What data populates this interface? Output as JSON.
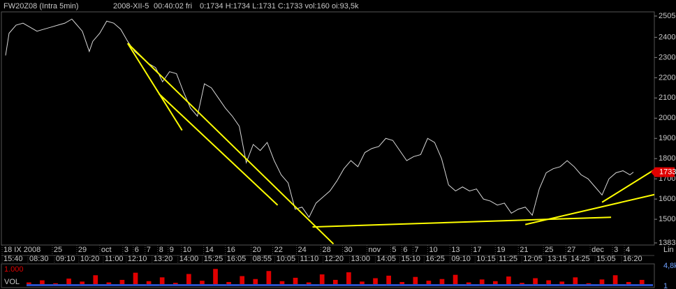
{
  "header": {
    "symbol": "FW20Z08 (Intra 5min)",
    "date": "2008-XII-5",
    "time": "00:40:02 fri",
    "quote": "0:1734 H:1734 L:1731 C:1733 vol:160 oi:93,5k"
  },
  "chart_data": {
    "type": "line",
    "x": [
      5,
      10,
      20,
      30,
      40,
      50,
      60,
      70,
      80,
      90,
      100,
      105,
      115,
      125,
      130,
      140,
      150,
      160,
      170,
      180,
      190,
      200,
      210,
      220,
      230,
      240,
      250,
      260,
      270,
      280,
      290,
      300,
      310,
      320,
      330,
      340,
      350,
      360,
      370,
      380,
      390,
      400,
      410,
      420,
      430,
      440,
      450,
      460,
      470,
      480,
      490,
      500,
      510,
      520,
      530,
      540,
      550,
      560,
      570,
      580,
      590,
      600,
      610,
      620,
      630,
      640,
      650,
      660,
      670,
      680,
      690,
      700,
      710,
      720,
      730,
      740,
      750,
      760,
      770,
      780,
      790,
      800,
      810,
      820,
      830,
      840,
      850,
      860,
      870,
      880,
      890,
      900,
      905
    ],
    "series": [
      {
        "name": "FW20Z08",
        "color": "#d8d8d8",
        "values": [
          2310,
          2420,
          2460,
          2470,
          2450,
          2430,
          2440,
          2450,
          2460,
          2470,
          2490,
          2470,
          2430,
          2330,
          2380,
          2420,
          2480,
          2470,
          2440,
          2380,
          2330,
          2300,
          2270,
          2250,
          2180,
          2230,
          2220,
          2130,
          2050,
          2010,
          2170,
          2150,
          2100,
          2050,
          2010,
          1960,
          1780,
          1870,
          1840,
          1880,
          1790,
          1720,
          1680,
          1550,
          1560,
          1510,
          1580,
          1610,
          1640,
          1690,
          1750,
          1790,
          1760,
          1830,
          1850,
          1860,
          1900,
          1890,
          1840,
          1790,
          1810,
          1820,
          1900,
          1880,
          1800,
          1670,
          1640,
          1660,
          1640,
          1650,
          1600,
          1590,
          1570,
          1580,
          1530,
          1550,
          1560,
          1520,
          1650,
          1730,
          1750,
          1760,
          1790,
          1760,
          1720,
          1700,
          1660,
          1620,
          1700,
          1730,
          1740,
          1720,
          1733
        ]
      }
    ],
    "xlim": [
      0,
      935
    ],
    "ylim": [
      1383,
      2505
    ],
    "yticks": [
      1383,
      1500,
      1600,
      1700,
      1800,
      1900,
      2000,
      2100,
      2200,
      2300,
      2400,
      2505
    ],
    "scale_label": "Lin",
    "last": 1733,
    "last_color": "#e00000",
    "trendline_color": "#ffff00",
    "trendlines": [
      {
        "x": [
          180,
          258
        ],
        "y": [
          2370,
          1940
        ]
      },
      {
        "x": [
          225,
          395
        ],
        "y": [
          2120,
          1570
        ]
      },
      {
        "x": [
          180,
          475
        ],
        "y": [
          2370,
          1378
        ]
      },
      {
        "x": [
          445,
          873
        ],
        "y": [
          1462,
          1510
        ]
      },
      {
        "x": [
          750,
          935
        ],
        "y": [
          1474,
          1622
        ]
      },
      {
        "x": [
          860,
          935
        ],
        "y": [
          1584,
          1745
        ]
      }
    ],
    "date_ticks": [
      {
        "value": 0,
        "label": "18 IX 2008"
      },
      {
        "value": 72,
        "label": "25"
      },
      {
        "value": 107,
        "label": "29"
      },
      {
        "value": 140,
        "label": "oct"
      },
      {
        "value": 173,
        "label": "3"
      },
      {
        "value": 188,
        "label": "6"
      },
      {
        "value": 205,
        "label": "7"
      },
      {
        "value": 223,
        "label": "8"
      },
      {
        "value": 238,
        "label": "9"
      },
      {
        "value": 257,
        "label": "10"
      },
      {
        "value": 289,
        "label": "14"
      },
      {
        "value": 320,
        "label": "16"
      },
      {
        "value": 357,
        "label": "20"
      },
      {
        "value": 388,
        "label": "22"
      },
      {
        "value": 422,
        "label": "24"
      },
      {
        "value": 457,
        "label": "28"
      },
      {
        "value": 488,
        "label": "30"
      },
      {
        "value": 523,
        "label": "nov"
      },
      {
        "value": 557,
        "label": "5"
      },
      {
        "value": 573,
        "label": "6"
      },
      {
        "value": 589,
        "label": "7"
      },
      {
        "value": 610,
        "label": "10"
      },
      {
        "value": 642,
        "label": "13"
      },
      {
        "value": 673,
        "label": "17"
      },
      {
        "value": 707,
        "label": "19"
      },
      {
        "value": 740,
        "label": "21"
      },
      {
        "value": 776,
        "label": "25"
      },
      {
        "value": 808,
        "label": "27"
      },
      {
        "value": 843,
        "label": "dec"
      },
      {
        "value": 875,
        "label": "3"
      },
      {
        "value": 892,
        "label": "4"
      }
    ],
    "time_ticks": [
      "15:40",
      "08:30",
      "09:10",
      "10:20",
      "11:00",
      "12:10",
      "13:20",
      "14:00",
      "15:25",
      "16:05",
      "08:55",
      "10:05",
      "11:10",
      "12:20",
      "13:00",
      "14:05",
      "15:10",
      "16:25",
      "09:10",
      "10:15",
      "11:25",
      "12:05",
      "13:15",
      "14:25",
      "15:05",
      "16:20"
    ],
    "time_tick_x": [
      0,
      37,
      75,
      110,
      145,
      178,
      215,
      252,
      287,
      320,
      357,
      391,
      425,
      460,
      498,
      535,
      570,
      605,
      642,
      678,
      710,
      745,
      780,
      813,
      850,
      888
    ],
    "volume": {
      "name": "VOL",
      "scale": "1.000",
      "color": "#e00000",
      "ylim": [
        1,
        4800
      ],
      "yticks": [
        {
          "value": 4800,
          "label": "4,8k"
        },
        1
      ],
      "values": [
        900,
        1400,
        700,
        1800,
        1100,
        2600,
        900,
        1500,
        3200,
        1200,
        2100,
        800,
        2900,
        1300,
        4100,
        1000,
        2400,
        1700,
        3600,
        1200,
        2000,
        900,
        2800,
        1500,
        3300,
        1100,
        1900,
        2500,
        1000,
        2200,
        1300,
        1700,
        2700,
        900,
        1600,
        1200,
        2300,
        800,
        1900,
        1400,
        1100,
        2100,
        700,
        1600,
        2600,
        1000,
        1500
      ]
    }
  }
}
